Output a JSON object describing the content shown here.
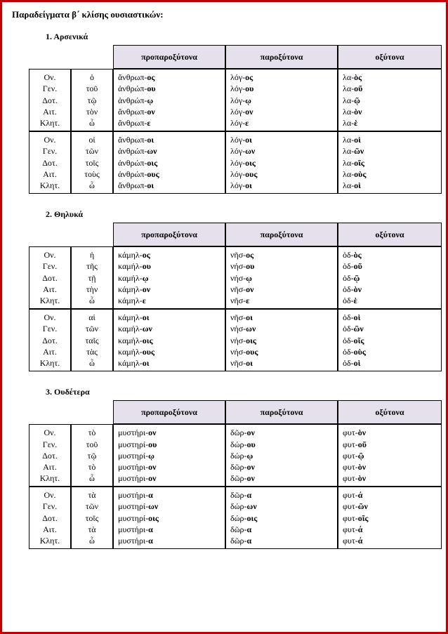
{
  "title": "Παραδείγματα β΄ κλίσης ουσιαστικών:",
  "col_headers": [
    "προπαροξύτονα",
    "παροξύτονα",
    "οξύτονα"
  ],
  "cases_sg": [
    "Ον.",
    "Γεν.",
    "Δοτ.",
    "Αιτ.",
    "Κλητ."
  ],
  "cases_pl": [
    "Ον.",
    "Γεν.",
    "Δοτ.",
    "Αιτ.",
    "Κλητ."
  ],
  "sections": [
    {
      "label": "1. Αρσενικά",
      "art_sg": [
        "ὁ",
        "τοῦ",
        "τῷ",
        "τὸν",
        "ὦ"
      ],
      "art_pl": [
        "οἱ",
        "τῶν",
        "τοῖς",
        "τοὺς",
        "ὦ"
      ],
      "sg": {
        "propar": [
          [
            "ἄνθρωπ-",
            "ος"
          ],
          [
            "ἀνθρώπ-",
            "ου"
          ],
          [
            "ἀνθρώπ-",
            "ῳ"
          ],
          [
            "ἄνθρωπ-",
            "ον"
          ],
          [
            "ἄνθρωπ-",
            "ε"
          ]
        ],
        "par": [
          [
            "λόγ-",
            "ος"
          ],
          [
            "λόγ-",
            "ου"
          ],
          [
            "λόγ-",
            "ῳ"
          ],
          [
            "λόγ-",
            "ον"
          ],
          [
            "λόγ-",
            "ε"
          ]
        ],
        "oxy": [
          [
            "λα-",
            "ὸς"
          ],
          [
            "λα-",
            "οῦ"
          ],
          [
            "λα-",
            "ῷ"
          ],
          [
            "λα-",
            "ὸν"
          ],
          [
            "λα-",
            "ὲ"
          ]
        ]
      },
      "pl": {
        "propar": [
          [
            "ἄνθρωπ-",
            "οι"
          ],
          [
            "ἀνθρώπ-",
            "ων"
          ],
          [
            "ἀνθρώπ-",
            "οις"
          ],
          [
            "ἀνθρώπ-",
            "ους"
          ],
          [
            "ἄνθρωπ-",
            "οι"
          ]
        ],
        "par": [
          [
            "λόγ-",
            "οι"
          ],
          [
            "λόγ-",
            "ων"
          ],
          [
            "λόγ-",
            "οις"
          ],
          [
            "λόγ-",
            "ους"
          ],
          [
            "λόγ-",
            "οι"
          ]
        ],
        "oxy": [
          [
            "λα-",
            "οὶ"
          ],
          [
            "λα-",
            "ῶν"
          ],
          [
            "λα-",
            "οῖς"
          ],
          [
            "λα-",
            "οὺς"
          ],
          [
            "λα-",
            "οὶ"
          ]
        ]
      }
    },
    {
      "label": "2.  Θηλυκά",
      "art_sg": [
        "ἡ",
        "τῆς",
        "τῇ",
        "τὴν",
        "ὦ"
      ],
      "art_pl": [
        "αἱ",
        "τῶν",
        "ταῖς",
        "τὰς",
        "ὦ"
      ],
      "sg": {
        "propar": [
          [
            "κάμηλ-",
            "ος"
          ],
          [
            "καμήλ-",
            "ου"
          ],
          [
            "καμήλ-",
            "ῳ"
          ],
          [
            "κάμηλ-",
            "ον"
          ],
          [
            "κάμηλ-",
            "ε"
          ]
        ],
        "par": [
          [
            "νῆσ-",
            "ος"
          ],
          [
            "νήσ-",
            "ου"
          ],
          [
            "νήσ-",
            "ῳ"
          ],
          [
            "νῆσ-",
            "ον"
          ],
          [
            "νῆσ-",
            "ε"
          ]
        ],
        "oxy": [
          [
            "ὁδ-",
            "ὸς"
          ],
          [
            "ὁδ-",
            "οῦ"
          ],
          [
            "ὁδ-",
            "ῷ"
          ],
          [
            "ὁδ-",
            "ὸν"
          ],
          [
            "ὁδ-",
            "ὲ"
          ]
        ]
      },
      "pl": {
        "propar": [
          [
            "κάμηλ-",
            "οι"
          ],
          [
            "καμήλ-",
            "ων"
          ],
          [
            "καμήλ-",
            "οις"
          ],
          [
            "καμήλ-",
            "ους"
          ],
          [
            "κάμηλ-",
            "οι"
          ]
        ],
        "par": [
          [
            "νῆσ-",
            "οι"
          ],
          [
            "νήσ-",
            "ων"
          ],
          [
            "νήσ-",
            "οις"
          ],
          [
            "νήσ-",
            "ους"
          ],
          [
            "νῆσ-",
            "οι"
          ]
        ],
        "oxy": [
          [
            "ὁδ-",
            "οὶ"
          ],
          [
            "ὁδ-",
            "ῶν"
          ],
          [
            "ὁδ-",
            "οῖς"
          ],
          [
            "ὁδ-",
            "οὺς"
          ],
          [
            "ὁδ-",
            "οὶ"
          ]
        ]
      }
    },
    {
      "label": "3. Ουδέτερα",
      "art_sg": [
        "τὸ",
        "τοῦ",
        "τῷ",
        "τὸ",
        "ὦ"
      ],
      "art_pl": [
        "τὰ",
        "τῶν",
        "τοῖς",
        "τὰ",
        "ὦ"
      ],
      "sg": {
        "propar": [
          [
            "μυστήρι-",
            "ον"
          ],
          [
            "μυστηρί-",
            "ου"
          ],
          [
            "μυστηρί-",
            "ῳ"
          ],
          [
            "μυστήρι-",
            "ον"
          ],
          [
            "μυστήρι-",
            "ον"
          ]
        ],
        "par": [
          [
            "δῶρ-",
            "ον"
          ],
          [
            "δώρ-",
            "ου"
          ],
          [
            "δώρ-",
            "ῳ"
          ],
          [
            "δῶρ-",
            "ον"
          ],
          [
            "δῶρ-",
            "ον"
          ]
        ],
        "oxy": [
          [
            "φυτ-",
            "ὸν"
          ],
          [
            "φυτ-",
            "οῦ"
          ],
          [
            "φυτ-",
            "ῷ"
          ],
          [
            "φυτ-",
            "ὸν"
          ],
          [
            "φυτ-",
            "ὸν"
          ]
        ]
      },
      "pl": {
        "propar": [
          [
            "μυστήρι-",
            "α"
          ],
          [
            "μυστηρί-",
            "ων"
          ],
          [
            "μυστηρί-",
            "οις"
          ],
          [
            "μυστήρι-",
            "α"
          ],
          [
            "μυστήρι-",
            "α"
          ]
        ],
        "par": [
          [
            "δῶρ-",
            "α"
          ],
          [
            "δώρ-",
            "ων"
          ],
          [
            "δώρ-",
            "οις"
          ],
          [
            "δῶρ-",
            "α"
          ],
          [
            "δῶρ-",
            "α"
          ]
        ],
        "oxy": [
          [
            "φυτ-",
            "ά"
          ],
          [
            "φυτ-",
            "ῶν"
          ],
          [
            "φυτ-",
            "οῖς"
          ],
          [
            "φυτ-",
            "ά"
          ],
          [
            "φυτ-",
            "ά"
          ]
        ]
      }
    }
  ]
}
